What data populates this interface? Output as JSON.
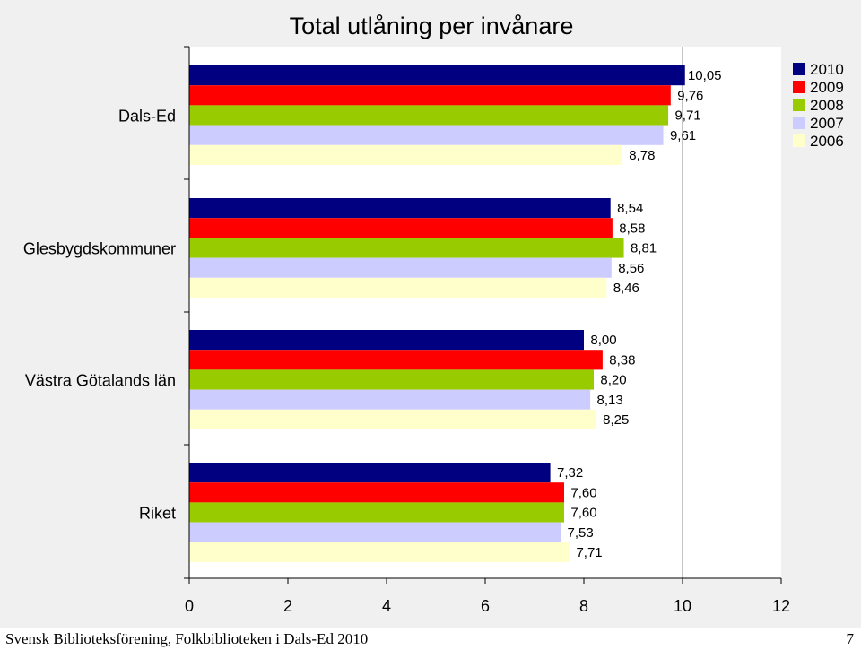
{
  "chart_data": {
    "type": "bar",
    "orientation": "horizontal",
    "title": "Total utlåning per invånare",
    "categories": [
      "Dals-Ed",
      "Glesbygdskommuner",
      "Västra Götalands län",
      "Riket"
    ],
    "series": [
      {
        "name": "2010",
        "color": "#000080",
        "values": [
          10.05,
          8.54,
          8.0,
          7.32
        ],
        "labels": [
          "10,05",
          "8,54",
          "8,00",
          "7,32"
        ]
      },
      {
        "name": "2009",
        "color": "#ff0000",
        "values": [
          9.76,
          8.58,
          8.38,
          7.6
        ],
        "labels": [
          "9,76",
          "8,58",
          "8,38",
          "7,60"
        ]
      },
      {
        "name": "2008",
        "color": "#99cc00",
        "values": [
          9.71,
          8.81,
          8.2,
          7.6
        ],
        "labels": [
          "9,71",
          "8,81",
          "8,20",
          "7,60"
        ]
      },
      {
        "name": "2007",
        "color": "#ccccff",
        "values": [
          9.61,
          8.56,
          8.13,
          7.53
        ],
        "labels": [
          "9,61",
          "8,56",
          "8,13",
          "7,53"
        ]
      },
      {
        "name": "2006",
        "color": "#ffffcc",
        "values": [
          8.78,
          8.46,
          8.25,
          7.71
        ],
        "labels": [
          "8,78",
          "8,46",
          "8,25",
          "7,71"
        ]
      }
    ],
    "xlim": [
      0,
      12
    ],
    "xticks": [
      "0",
      "2",
      "4",
      "6",
      "8",
      "10",
      "12"
    ],
    "gridline_at": 10,
    "legend_position": "top-right"
  },
  "footer": {
    "source": "Svensk Biblioteksförening, Folkbiblioteken i Dals-Ed 2010",
    "page_number": "7"
  }
}
